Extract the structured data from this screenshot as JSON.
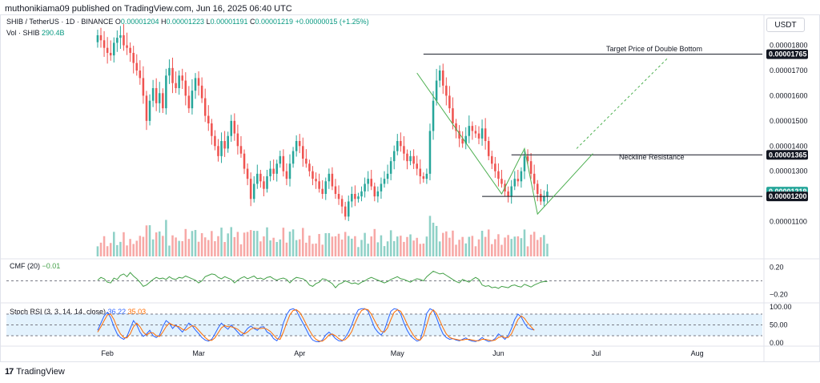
{
  "header": {
    "published": "muthonikiama09 published on TradingView.com, Jun 16, 2025 06:40 UTC",
    "unit_badge": "USDT"
  },
  "legend": {
    "symbol": "SHIB / TetherUS · 1D · BINANCE",
    "open_label": "O",
    "open": "0.00001204",
    "high_label": "H",
    "high": "0.00001223",
    "low_label": "L",
    "low": "0.00001191",
    "close_label": "C",
    "close": "0.00001219",
    "change": "+0.00000015 (+1.25%)",
    "volume_label": "Vol · SHIB",
    "volume": "290.4B"
  },
  "indicators": {
    "cmf_label": "CMF (20)",
    "cmf_value": "−0.01",
    "stoch_label": "Stoch RSI (3, 3, 14, 14, close)",
    "stoch_k": "36.22",
    "stoch_d": "35.03"
  },
  "annotations": {
    "target": "Target Price of Double Bottom",
    "neckline": "Neckline Resistance"
  },
  "footer": {
    "brand": "TradingView"
  },
  "colors": {
    "up": "#26a69a",
    "down": "#ef5350",
    "vol_up": "#8fd1c7",
    "vol_down": "#f7a8a6",
    "pattern": "#4caf50",
    "cmf": "#43a047",
    "stoch_k": "#2962ff",
    "stoch_d": "#ff6d00",
    "stoch_band": "#e3f2fd",
    "badge_dark": "#131722",
    "badge_green": "#26a69a"
  },
  "chart_data": [
    {
      "type": "candlestick",
      "title": "SHIB / TetherUS · 1D · BINANCE",
      "y_ticks": [
        1.1e-05,
        1.2e-05,
        1.3e-05,
        1.4e-05,
        1.5e-05,
        1.6e-05,
        1.7e-05,
        1.8e-05
      ],
      "y_tick_labels": [
        "0.00001100",
        "0.00001200",
        "0.00001300",
        "0.00001400",
        "0.00001500",
        "0.00001600",
        "0.00001700",
        "0.00001800"
      ],
      "ylim": [
        1.035e-05,
        1.84e-05
      ],
      "x_ticks": [
        "Feb",
        "Mar",
        "Apr",
        "May",
        "Jun",
        "Jul",
        "Aug"
      ],
      "x_tick_dates": [
        "2025-02-01",
        "2025-03-01",
        "2025-04-01",
        "2025-05-01",
        "2025-06-01",
        "2025-07-01",
        "2025-08-01"
      ],
      "x_start_date": "2025-01-01",
      "x_end_date": "2025-08-21",
      "last_bar_date": "2025-06-16",
      "closes": [
        1.84,
        1.82,
        1.79,
        1.77,
        1.76,
        1.81,
        1.83,
        1.84,
        1.8,
        1.79,
        1.77,
        1.73,
        1.7,
        1.67,
        1.6,
        1.5,
        1.58,
        1.63,
        1.57,
        1.61,
        1.55,
        1.68,
        1.71,
        1.65,
        1.63,
        1.68,
        1.66,
        1.6,
        1.55,
        1.62,
        1.67,
        1.64,
        1.59,
        1.52,
        1.49,
        1.44,
        1.4,
        1.36,
        1.42,
        1.39,
        1.44,
        1.5,
        1.45,
        1.4,
        1.37,
        1.31,
        1.27,
        1.19,
        1.25,
        1.29,
        1.26,
        1.23,
        1.28,
        1.31,
        1.29,
        1.33,
        1.36,
        1.3,
        1.27,
        1.33,
        1.38,
        1.42,
        1.4,
        1.35,
        1.33,
        1.3,
        1.27,
        1.26,
        1.23,
        1.21,
        1.26,
        1.29,
        1.24,
        1.21,
        1.19,
        1.16,
        1.12,
        1.18,
        1.21,
        1.19,
        1.2,
        1.22,
        1.25,
        1.27,
        1.24,
        1.2,
        1.22,
        1.25,
        1.27,
        1.29,
        1.34,
        1.38,
        1.42,
        1.4,
        1.37,
        1.34,
        1.36,
        1.33,
        1.31,
        1.28,
        1.27,
        1.29,
        1.46,
        1.58,
        1.66,
        1.7,
        1.64,
        1.6,
        1.55,
        1.49,
        1.46,
        1.43,
        1.41,
        1.44,
        1.48,
        1.46,
        1.45,
        1.43,
        1.47,
        1.42,
        1.36,
        1.33,
        1.3,
        1.27,
        1.25,
        1.22,
        1.2,
        1.24,
        1.27,
        1.26,
        1.3,
        1.36,
        1.34,
        1.29,
        1.25,
        1.21,
        1.18,
        1.2,
        1.219
      ],
      "scale": 1e-05,
      "highlighted_levels": [
        {
          "label": "0.00001765",
          "value": 1.765e-05,
          "style": "dark"
        },
        {
          "label": "0.00001365",
          "value": 1.365e-05,
          "style": "dark"
        },
        {
          "label": "0.00001219",
          "value": 1.219e-05,
          "style": "green"
        },
        {
          "label": "0.00001200",
          "value": 1.2e-05,
          "style": "dark"
        }
      ],
      "horizontal_lines": [
        {
          "name": "target",
          "value": 1.765e-05,
          "from": "2025-05-09",
          "to": "2025-08-21"
        },
        {
          "name": "neckline",
          "value": 1.365e-05,
          "from": "2025-06-05",
          "to": "2025-08-21"
        },
        {
          "name": "support",
          "value": 1.2e-05,
          "from": "2025-05-27",
          "to": "2025-08-21"
        }
      ],
      "pattern_path": [
        {
          "date": "2025-05-07",
          "value": 1.69e-05
        },
        {
          "date": "2025-06-02",
          "value": 1.21e-05
        },
        {
          "date": "2025-06-09",
          "value": 1.39e-05
        },
        {
          "date": "2025-06-13",
          "value": 1.13e-05
        },
        {
          "date": "2025-06-30",
          "value": 1.37e-05
        }
      ],
      "projection_path": [
        {
          "date": "2025-06-25",
          "value": 1.39e-05
        },
        {
          "date": "2025-07-23",
          "value": 1.75e-05
        }
      ]
    },
    {
      "type": "line",
      "title": "CMF (20)",
      "y_ticks": [
        0.2,
        -0.2
      ],
      "y_tick_labels": [
        "0.20",
        "−0.20"
      ],
      "ylim": [
        -0.25,
        0.25
      ],
      "values": [
        0.01,
        0.05,
        0.03,
        -0.02,
        -0.03,
        0.04,
        0.02,
        0.08,
        0.1,
        0.06,
        0.12,
        0.07,
        0.03,
        -0.02,
        -0.08,
        -0.06,
        -0.02,
        0.02,
        0.05,
        0.03,
        0.04,
        0.02,
        0.06,
        0.03,
        0.02,
        0.05,
        0.04,
        0.07,
        0.05,
        0.03,
        0.01,
        -0.03,
        0.0,
        0.06,
        0.08,
        0.1,
        0.09,
        0.05,
        0.03,
        0.06,
        0.04,
        0.02,
        -0.03,
        0.01,
        0.04,
        0.06,
        0.03,
        0.05,
        0.07,
        0.03,
        0.04,
        0.02,
        0.05,
        0.06,
        0.03,
        0.01,
        0.03,
        0.04,
        0.02,
        -0.03,
        0.02,
        0.05,
        0.04,
        0.03,
        0.0,
        -0.06,
        -0.08,
        -0.04,
        -0.02,
        0.03,
        0.02,
        -0.01,
        -0.04,
        -0.1,
        -0.05,
        -0.03,
        0.0,
        -0.02,
        -0.04,
        -0.03,
        -0.05,
        -0.02,
        0.0,
        0.03,
        0.05,
        0.03,
        0.01,
        -0.01,
        -0.03,
        -0.01,
        0.02,
        0.04,
        0.06,
        0.03,
        0.02,
        0.0,
        -0.02,
        0.01,
        0.03,
        0.02,
        0.0,
        0.06,
        0.1,
        0.14,
        0.12,
        0.1,
        0.11,
        0.08,
        0.05,
        0.02,
        -0.01,
        -0.03,
        0.02,
        0.0,
        -0.02,
        0.02,
        0.05,
        0.02,
        -0.06,
        -0.08,
        -0.07,
        -0.1,
        -0.09,
        -0.11,
        -0.08,
        -0.09,
        -0.1,
        -0.07,
        -0.06,
        -0.08,
        -0.09,
        -0.05,
        -0.07,
        -0.09,
        -0.06,
        -0.04,
        -0.02,
        -0.01,
        -0.01
      ]
    },
    {
      "type": "line",
      "title": "Stoch RSI (3, 3, 14, 14, close)",
      "y_ticks": [
        100,
        50,
        0
      ],
      "y_tick_labels": [
        "100.00",
        "50.00",
        "0.00"
      ],
      "ylim": [
        0,
        100
      ],
      "band": [
        20,
        80
      ],
      "series": [
        {
          "name": "K",
          "values": [
            35,
            55,
            75,
            85,
            70,
            45,
            25,
            15,
            10,
            18,
            40,
            62,
            50,
            30,
            18,
            25,
            35,
            20,
            15,
            22,
            45,
            62,
            55,
            40,
            50,
            40,
            30,
            42,
            55,
            48,
            36,
            26,
            15,
            8,
            5,
            10,
            25,
            42,
            55,
            45,
            38,
            50,
            40,
            30,
            20,
            28,
            40,
            47,
            40,
            35,
            44,
            45,
            30,
            25,
            12,
            6,
            20,
            55,
            78,
            92,
            95,
            90,
            72,
            55,
            38,
            20,
            8,
            4,
            3,
            8,
            22,
            30,
            22,
            12,
            6,
            5,
            15,
            30,
            50,
            75,
            92,
            95,
            95,
            88,
            65,
            42,
            30,
            22,
            35,
            62,
            88,
            95,
            93,
            80,
            55,
            35,
            20,
            12,
            5,
            8,
            40,
            82,
            95,
            90,
            70,
            45,
            25,
            15,
            10,
            12,
            8,
            6,
            10,
            14,
            8,
            5,
            4,
            8,
            15,
            8,
            4,
            6,
            12,
            25,
            18,
            10,
            20,
            40,
            65,
            80,
            72,
            55,
            42,
            38,
            36
          ]
        },
        {
          "name": "D",
          "values": [
            30,
            45,
            62,
            78,
            80,
            65,
            42,
            25,
            15,
            14,
            25,
            45,
            55,
            45,
            30,
            22,
            28,
            28,
            20,
            18,
            30,
            45,
            55,
            50,
            47,
            45,
            38,
            35,
            42,
            48,
            45,
            35,
            25,
            15,
            8,
            7,
            14,
            28,
            42,
            48,
            45,
            45,
            42,
            38,
            30,
            25,
            30,
            38,
            42,
            40,
            40,
            41,
            38,
            32,
            22,
            12,
            10,
            30,
            55,
            78,
            90,
            92,
            85,
            70,
            52,
            35,
            20,
            10,
            5,
            5,
            12,
            22,
            25,
            20,
            12,
            7,
            9,
            18,
            32,
            55,
            75,
            90,
            94,
            92,
            80,
            62,
            45,
            32,
            30,
            42,
            65,
            85,
            92,
            88,
            72,
            52,
            35,
            20,
            10,
            8,
            20,
            50,
            80,
            92,
            82,
            62,
            42,
            25,
            15,
            12,
            10,
            8,
            8,
            10,
            10,
            8,
            6,
            6,
            10,
            10,
            8,
            6,
            8,
            15,
            18,
            15,
            15,
            25,
            45,
            65,
            75,
            68,
            55,
            45,
            35
          ]
        }
      ]
    }
  ]
}
